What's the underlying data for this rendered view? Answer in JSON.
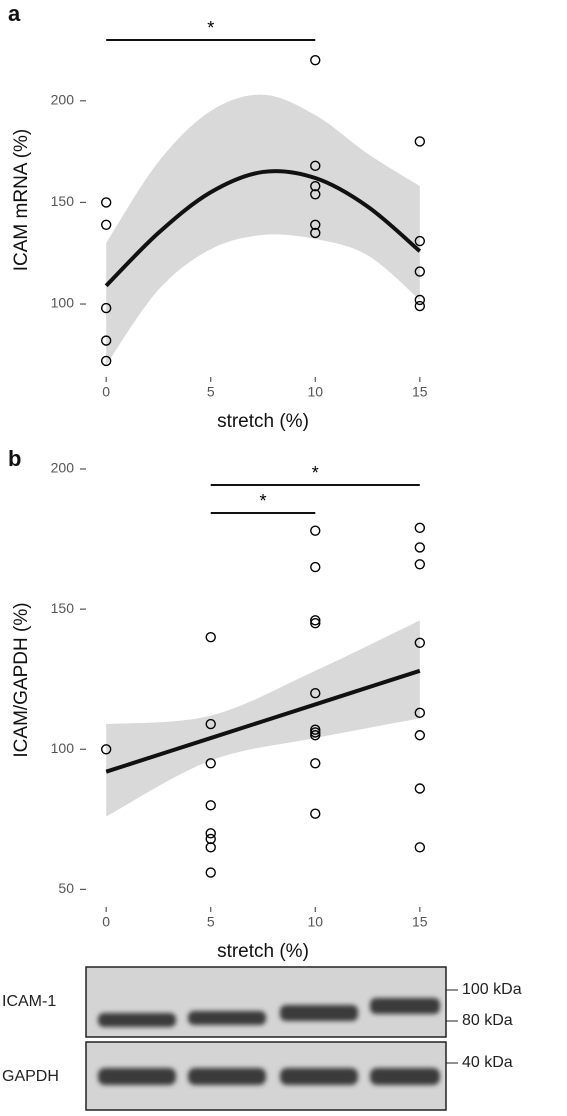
{
  "chart_data": [
    {
      "type": "scatter",
      "panel": "a",
      "xlabel": "stretch (%)",
      "ylabel": "ICAM mRNA (%)",
      "x": [
        0,
        0,
        0,
        0,
        0,
        10,
        10,
        10,
        10,
        10,
        10,
        15,
        15,
        15,
        15,
        15
      ],
      "values": [
        150,
        139,
        98,
        82,
        72,
        220,
        168,
        158,
        154,
        139,
        135,
        180,
        131,
        116,
        102,
        99
      ],
      "color": "#000000",
      "fit": {
        "color": "#111111",
        "band_color": "#d9d9d9",
        "x": [
          0,
          2.5,
          5,
          7.5,
          10,
          12.5,
          15
        ],
        "values": [
          109,
          135,
          155,
          165,
          162,
          148,
          126
        ],
        "lower": [
          70,
          107,
          127,
          134,
          132,
          124,
          102
        ],
        "upper": [
          130,
          170,
          195,
          203,
          193,
          174,
          158
        ]
      },
      "annotations": [
        {
          "label": "*",
          "x": [
            0,
            10
          ]
        }
      ],
      "xlim": [
        -0.2,
        15.2
      ],
      "xticks": [
        0,
        5,
        10,
        15
      ],
      "ylim": [
        70,
        225
      ],
      "yticks": [
        100,
        150,
        200
      ]
    },
    {
      "type": "scatter",
      "panel": "b",
      "xlabel": "stretch (%)",
      "ylabel": "ICAM/GAPDH (%)",
      "x": [
        0,
        5,
        5,
        5,
        5,
        5,
        5,
        5,
        5,
        10,
        10,
        10,
        10,
        10,
        10,
        10,
        10,
        10,
        10,
        15,
        15,
        15,
        15,
        15,
        15,
        15,
        15
      ],
      "values": [
        100,
        140,
        109,
        95,
        80,
        70,
        68,
        65,
        56,
        178,
        165,
        146,
        145,
        120,
        107,
        106,
        105,
        95,
        77,
        179,
        172,
        166,
        138,
        113,
        105,
        86,
        65
      ],
      "color": "#000000",
      "fit": {
        "color": "#111111",
        "band_color": "#d9d9d9",
        "x": [
          0,
          5,
          10,
          15
        ],
        "values": [
          92,
          104,
          116,
          128
        ],
        "lower": [
          76,
          96,
          104,
          111
        ],
        "upper": [
          109,
          112,
          128,
          146
        ]
      },
      "annotations": [
        {
          "label": "*",
          "x": [
            5,
            15
          ]
        },
        {
          "label": "*",
          "x": [
            5,
            10
          ]
        }
      ],
      "xlim": [
        -0.2,
        15.2
      ],
      "xticks": [
        0,
        5,
        10,
        15
      ],
      "ylim": [
        48,
        200
      ],
      "yticks": [
        50,
        100,
        150,
        200
      ]
    }
  ],
  "blot": {
    "rows": [
      "ICAM-1",
      "GAPDH"
    ],
    "markers": [
      "100 kDa",
      "80 kDa",
      "40 kDa"
    ]
  }
}
